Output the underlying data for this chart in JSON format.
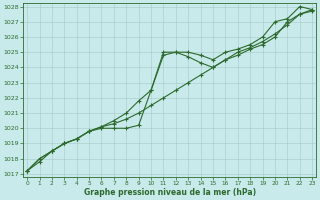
{
  "xlabel": "Graphe pression niveau de la mer (hPa)",
  "hours": [
    0,
    1,
    2,
    3,
    4,
    5,
    6,
    7,
    8,
    9,
    10,
    11,
    12,
    13,
    14,
    15,
    16,
    17,
    18,
    19,
    20,
    21,
    22,
    23
  ],
  "line1": [
    1017.2,
    1018.0,
    1018.5,
    1019.0,
    1019.3,
    1019.8,
    1020.1,
    1020.3,
    1020.6,
    1021.0,
    1021.5,
    1022.0,
    1022.5,
    1023.0,
    1023.5,
    1024.0,
    1024.5,
    1025.0,
    1025.3,
    1025.7,
    1026.2,
    1026.8,
    1027.5,
    1027.8
  ],
  "line2": [
    1017.2,
    1018.0,
    1018.5,
    1019.0,
    1019.3,
    1019.8,
    1020.1,
    1020.5,
    1021.0,
    1021.8,
    1022.5,
    1025.0,
    1025.0,
    1025.0,
    1024.8,
    1024.5,
    1025.0,
    1025.2,
    1025.5,
    1026.0,
    1027.0,
    1027.2,
    1028.0,
    1027.8
  ],
  "line3": [
    1017.2,
    1017.8,
    1018.5,
    1019.0,
    1019.3,
    1019.8,
    1020.0,
    1020.0,
    1020.0,
    1020.2,
    1022.5,
    1024.8,
    1025.0,
    1024.7,
    1024.3,
    1024.0,
    1024.5,
    1024.8,
    1025.2,
    1025.5,
    1026.0,
    1027.0,
    1027.5,
    1027.7
  ],
  "line_color": "#2d6a2d",
  "bg_color": "#c8eaea",
  "grid_color": "#a8c8c8",
  "ylim_min": 1017,
  "ylim_max": 1028,
  "xlim_min": 0,
  "xlim_max": 23,
  "yticks": [
    1017,
    1018,
    1019,
    1020,
    1021,
    1022,
    1023,
    1024,
    1025,
    1026,
    1027,
    1028
  ],
  "xticks": [
    0,
    1,
    2,
    3,
    4,
    5,
    6,
    7,
    8,
    9,
    10,
    11,
    12,
    13,
    14,
    15,
    16,
    17,
    18,
    19,
    20,
    21,
    22,
    23
  ],
  "marker": "+"
}
